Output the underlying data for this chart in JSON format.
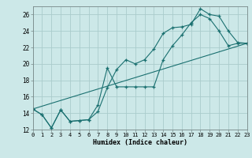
{
  "xlabel": "Humidex (Indice chaleur)",
  "background_color": "#cce8e8",
  "grid_color": "#aacccc",
  "line_color": "#1a7070",
  "xlim": [
    0,
    23
  ],
  "ylim": [
    12,
    27
  ],
  "xticks": [
    0,
    1,
    2,
    3,
    4,
    5,
    6,
    7,
    8,
    9,
    10,
    11,
    12,
    13,
    14,
    15,
    16,
    17,
    18,
    19,
    20,
    21,
    22,
    23
  ],
  "yticks": [
    12,
    14,
    16,
    18,
    20,
    22,
    24,
    26
  ],
  "line1_x": [
    0,
    1,
    2,
    3,
    4,
    5,
    6,
    7,
    8,
    9,
    10,
    11,
    12,
    13,
    14,
    15,
    16,
    17,
    18,
    19,
    20,
    21,
    22,
    23
  ],
  "line1_y": [
    14.5,
    13.8,
    12.2,
    14.4,
    13.0,
    13.1,
    13.2,
    14.2,
    17.1,
    19.3,
    20.5,
    20.0,
    20.5,
    21.8,
    23.7,
    24.4,
    24.5,
    24.8,
    26.7,
    26.0,
    25.8,
    24.0,
    22.6,
    22.5
  ],
  "line2_x": [
    0,
    1,
    2,
    3,
    4,
    5,
    6,
    7,
    8,
    9,
    10,
    11,
    12,
    13,
    14,
    15,
    16,
    17,
    18,
    19,
    20,
    21,
    22,
    23
  ],
  "line2_y": [
    14.5,
    13.8,
    12.2,
    14.4,
    13.0,
    13.1,
    13.2,
    15.0,
    19.5,
    17.2,
    17.2,
    17.2,
    17.2,
    17.2,
    20.5,
    22.2,
    23.5,
    25.0,
    26.0,
    25.5,
    24.0,
    22.2,
    22.5,
    22.5
  ],
  "line3_x": [
    0,
    23
  ],
  "line3_y": [
    14.5,
    22.5
  ]
}
